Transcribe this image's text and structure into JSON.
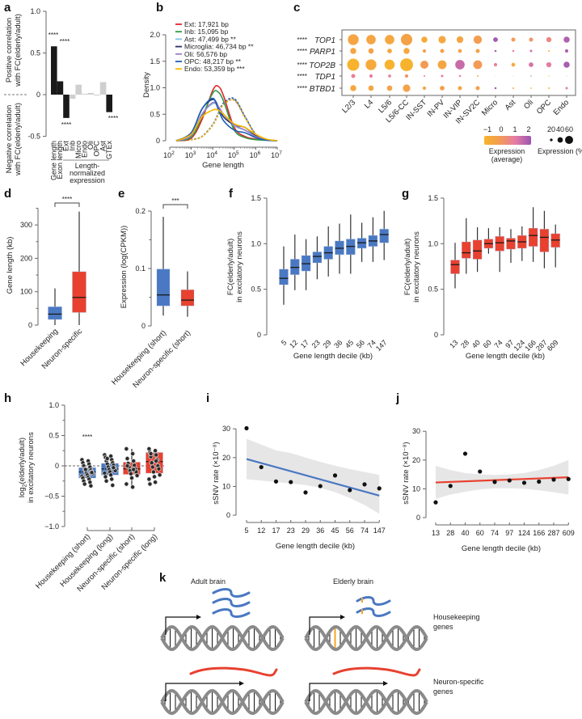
{
  "panel_labels": [
    "a",
    "b",
    "c",
    "d",
    "e",
    "f",
    "g",
    "h",
    "i",
    "j",
    "k"
  ],
  "chart_data": [
    {
      "type": "bar",
      "ylabel_positive": [
        "Positive correlation",
        "with FC(elderly/adult)"
      ],
      "ylabel_negative": [
        "Negative correlation",
        "with FC(elderly/adult)"
      ],
      "categories": [
        "Gene length",
        "Exon length",
        "Ext",
        "Inb",
        "Micro",
        "Endo",
        "Oli",
        "OPC",
        "Ast",
        "GTEx"
      ],
      "values": [
        0.58,
        0.16,
        -0.28,
        -0.05,
        0.12,
        0.01,
        0.02,
        -0.01,
        0.15,
        -0.21
      ],
      "colors": [
        "#1a1a1a",
        "#1a1a1a",
        "#1a1a1a",
        "#cfcfcf",
        "#cfcfcf",
        "#cfcfcf",
        "#cfcfcf",
        "#cfcfcf",
        "#cfcfcf",
        "#1a1a1a"
      ],
      "significance": [
        "****",
        "****",
        "****",
        "",
        "",
        "",
        "",
        "",
        "",
        "****"
      ],
      "group_label": [
        "Length-",
        "normalized",
        "expression"
      ],
      "yticks": [
        "1.0",
        "0.5",
        "0",
        "-0.5"
      ],
      "ytick_values": [
        1.0,
        0.5,
        0,
        -0.5
      ],
      "ylim": [
        -0.5,
        1.0
      ]
    },
    {
      "type": "line",
      "xlabel": "Gene length",
      "ylabel": "Density",
      "x_scale": "log",
      "x_tick_base": "10",
      "x_tick_exponents": [
        2,
        3,
        4,
        5,
        6,
        7
      ],
      "yticks": [
        "0",
        "0.5",
        "1.0",
        "1.5",
        "2.0"
      ],
      "ytick_values": [
        0,
        0.5,
        1.0,
        1.5,
        2.0
      ],
      "ylim": [
        0,
        2.0
      ],
      "x_log10": [
        2.3,
        3,
        3.5,
        4,
        4.25,
        4.5,
        5,
        5.5,
        6,
        6.5,
        7
      ],
      "reference_dashed_y": [
        0,
        0.02,
        0.08,
        0.3,
        0.5,
        0.7,
        0.78,
        0.45,
        0.12,
        0.02,
        0
      ],
      "legend_position": "top-right",
      "series": [
        {
          "name": "Ext: 17,921 bp",
          "color": "#e0262b",
          "y": [
            0,
            0.05,
            0.4,
            0.95,
            1.03,
            0.85,
            0.25,
            0.08,
            0.03,
            0.01,
            0
          ]
        },
        {
          "name": "Inb: 15,095 bp",
          "color": "#2e9a48",
          "y": [
            0,
            0.07,
            0.45,
            0.9,
            0.92,
            0.75,
            0.2,
            0.06,
            0.02,
            0.01,
            0
          ]
        },
        {
          "name": "Ast: 47,499 bp **",
          "color": "#7fc3e0",
          "y": [
            0,
            0.1,
            0.5,
            0.7,
            0.65,
            0.5,
            0.28,
            0.2,
            0.1,
            0.02,
            0
          ]
        },
        {
          "name": "Microglia: 46,734 bp **",
          "color": "#2b2f6b",
          "y": [
            0,
            0.15,
            0.6,
            0.78,
            0.65,
            0.45,
            0.3,
            0.25,
            0.1,
            0.02,
            0
          ]
        },
        {
          "name": "Oli: 56,576 bp",
          "color": "#a07cc5",
          "y": [
            0,
            0.1,
            0.5,
            0.72,
            0.65,
            0.5,
            0.3,
            0.2,
            0.08,
            0.02,
            0
          ]
        },
        {
          "name": "OPC: 48,217 bp **",
          "color": "#1f5fb5",
          "y": [
            0,
            0.15,
            0.6,
            0.8,
            0.6,
            0.38,
            0.2,
            0.15,
            0.06,
            0.01,
            0
          ]
        },
        {
          "name": "Endo: 53,359 bp ***",
          "color": "#f5b800",
          "y": [
            0,
            0.12,
            0.45,
            0.58,
            0.58,
            0.5,
            0.32,
            0.25,
            0.12,
            0.03,
            0
          ]
        }
      ]
    },
    {
      "type": "dotplot",
      "genes": [
        "TOP1",
        "PARP1",
        "TOP2B",
        "TDP1",
        "BTBD1"
      ],
      "gene_significance": [
        "****",
        "****",
        "****",
        "****",
        "****"
      ],
      "columns": [
        "L2/3",
        "L4",
        "L5/6",
        "L5/6-CC",
        "IN-SST",
        "IN-PV",
        "IN-VIP",
        "IN-SV2C",
        "Micro",
        "Ast",
        "Oli",
        "OPC",
        "Endo"
      ],
      "percent_expressed": [
        [
          80,
          70,
          70,
          85,
          45,
          55,
          50,
          62,
          35,
          30,
          30,
          38,
          45
        ],
        [
          45,
          40,
          35,
          45,
          25,
          30,
          28,
          30,
          15,
          15,
          18,
          12,
          25
        ],
        [
          90,
          80,
          75,
          95,
          60,
          65,
          70,
          65,
          25,
          28,
          35,
          38,
          45
        ],
        [
          30,
          25,
          22,
          25,
          12,
          18,
          15,
          12,
          5,
          5,
          8,
          8,
          6
        ],
        [
          45,
          40,
          40,
          55,
          25,
          35,
          30,
          30,
          15,
          12,
          10,
          12,
          18
        ]
      ],
      "average_expression": [
        [
          -0.4,
          -0.4,
          -0.5,
          -0.3,
          -0.6,
          -0.5,
          -0.4,
          -0.1,
          1.9,
          0.0,
          0.2,
          0.6,
          1.7
        ],
        [
          -0.4,
          -0.3,
          -0.5,
          -0.5,
          -0.2,
          -0.3,
          -0.3,
          -0.3,
          1.8,
          0.8,
          1.2,
          -0.9,
          1.7
        ],
        [
          -0.9,
          -0.6,
          -0.9,
          -0.9,
          0.0,
          -0.4,
          1.4,
          0.0,
          0.8,
          -0.5,
          1.2,
          0.9,
          1.8
        ],
        [
          0.8,
          1.0,
          0.8,
          0.2,
          1.0,
          1.0,
          1.0,
          -0.5,
          -0.8,
          -0.8,
          1.8,
          -0.9,
          -0.9
        ],
        [
          -0.5,
          -0.4,
          -0.3,
          -0.3,
          -0.4,
          -0.2,
          -0.4,
          -0.2,
          1.9,
          -0.5,
          -0.7,
          -0.7,
          0.8
        ]
      ],
      "color_scale": {
        "ticks": [
          "−1",
          "0",
          "1",
          "2"
        ],
        "values": [
          -1,
          0,
          1,
          2
        ],
        "colors": [
          "#f7b52a",
          "#f39a55",
          "#e57ba5",
          "#9a55b0"
        ],
        "label": [
          "Expression",
          "(average)"
        ]
      },
      "size_scale": {
        "ticks": [
          "20",
          "40",
          "60"
        ],
        "values": [
          20,
          40,
          60
        ],
        "label": "Expression (%)"
      }
    },
    {
      "type": "box",
      "ylabel": "Gene length (kb)",
      "categories": [
        "Housekeeping",
        "Neuron-specific"
      ],
      "colors": [
        "#4a78c2",
        "#e8412f"
      ],
      "boxes": [
        {
          "min": 0,
          "q1": 17,
          "median": 33,
          "q3": 55,
          "max": 110
        },
        {
          "min": 0,
          "q1": 38,
          "median": 83,
          "q3": 160,
          "max": 340
        }
      ],
      "significance": "****",
      "yticks": [
        "0",
        "100",
        "200",
        "300"
      ],
      "ytick_values": [
        0,
        100,
        200,
        300
      ],
      "ylim": [
        0,
        350
      ]
    },
    {
      "type": "box",
      "ylabel": "Expression (log(CPKM))",
      "categories": [
        "Housekeeping (short)",
        "Neuron-specific (short)"
      ],
      "colors": [
        "#4a78c2",
        "#e8412f"
      ],
      "boxes": [
        {
          "min": 0.018,
          "q1": 0.035,
          "median": 0.054,
          "q3": 0.099,
          "max": 0.19
        },
        {
          "min": 0.016,
          "q1": 0.035,
          "median": 0.045,
          "q3": 0.063,
          "max": 0.095
        }
      ],
      "significance": "***",
      "yticks": [
        "0",
        "0.1",
        "0.2"
      ],
      "ytick_values": [
        0,
        0.1,
        0.2
      ],
      "ylim": [
        0,
        0.2
      ]
    },
    {
      "type": "box",
      "ylabel": [
        "FC(elderly/adult)",
        "in excitatory neurons"
      ],
      "xlabel": "Gene length decile (kb)",
      "categories": [
        "5",
        "12",
        "17",
        "23",
        "29",
        "36",
        "45",
        "56",
        "74",
        "147"
      ],
      "color": "#4a78c2",
      "boxes": [
        {
          "min": 0.33,
          "q1": 0.55,
          "median": 0.62,
          "q3": 0.72,
          "max": 0.97
        },
        {
          "min": 0.49,
          "q1": 0.66,
          "median": 0.74,
          "q3": 0.83,
          "max": 1.1
        },
        {
          "min": 0.49,
          "q1": 0.7,
          "median": 0.78,
          "q3": 0.87,
          "max": 1.05
        },
        {
          "min": 0.61,
          "q1": 0.79,
          "median": 0.86,
          "q3": 0.91,
          "max": 1.08
        },
        {
          "min": 0.64,
          "q1": 0.83,
          "median": 0.9,
          "q3": 0.97,
          "max": 1.19
        },
        {
          "min": 0.67,
          "q1": 0.88,
          "median": 0.95,
          "q3": 1.03,
          "max": 1.22
        },
        {
          "min": 0.67,
          "q1": 0.88,
          "median": 0.97,
          "q3": 1.05,
          "max": 1.32
        },
        {
          "min": 0.8,
          "q1": 0.95,
          "median": 1.01,
          "q3": 1.06,
          "max": 1.23
        },
        {
          "min": 0.8,
          "q1": 0.97,
          "median": 1.03,
          "q3": 1.09,
          "max": 1.29
        },
        {
          "min": 0.82,
          "q1": 1.01,
          "median": 1.1,
          "q3": 1.16,
          "max": 1.36
        }
      ],
      "yticks": [
        "0",
        "0.5",
        "1.0",
        "1.5"
      ],
      "ytick_values": [
        0,
        0.5,
        1.0,
        1.5
      ],
      "ylim": [
        0,
        1.5
      ]
    },
    {
      "type": "box",
      "ylabel": [
        "FC(elderly/adult)",
        "in excitatory neurons"
      ],
      "xlabel": "Gene length decile (kb)",
      "categories": [
        "13",
        "28",
        "40",
        "60",
        "74",
        "97",
        "124",
        "166",
        "287",
        "609"
      ],
      "color": "#e8412f",
      "boxes": [
        {
          "min": 0.51,
          "q1": 0.67,
          "median": 0.77,
          "q3": 0.82,
          "max": 1.01
        },
        {
          "min": 0.67,
          "q1": 0.84,
          "median": 0.9,
          "q3": 1.02,
          "max": 1.28
        },
        {
          "min": 0.69,
          "q1": 0.83,
          "median": 0.92,
          "q3": 1.04,
          "max": 1.18
        },
        {
          "min": 0.89,
          "q1": 0.95,
          "median": 1.0,
          "q3": 1.05,
          "max": 1.17
        },
        {
          "min": 0.69,
          "q1": 0.92,
          "median": 1.01,
          "q3": 1.08,
          "max": 1.18
        },
        {
          "min": 0.79,
          "q1": 0.94,
          "median": 1.03,
          "q3": 1.06,
          "max": 1.16
        },
        {
          "min": 0.81,
          "q1": 0.95,
          "median": 1.02,
          "q3": 1.09,
          "max": 1.19
        },
        {
          "min": 0.8,
          "q1": 0.97,
          "median": 1.09,
          "q3": 1.17,
          "max": 1.4
        },
        {
          "min": 0.73,
          "q1": 0.91,
          "median": 1.07,
          "q3": 1.16,
          "max": 1.36
        },
        {
          "min": 0.74,
          "q1": 0.96,
          "median": 1.04,
          "q3": 1.11,
          "max": 1.21
        }
      ],
      "yticks": [
        "0",
        "0.5",
        "1.0",
        "1.5"
      ],
      "ytick_values": [
        0,
        0.5,
        1.0,
        1.5
      ],
      "ylim": [
        0,
        1.5
      ]
    },
    {
      "type": "box",
      "ylabel_parts": [
        "log",
        "2",
        "(elderly/adult)"
      ],
      "ylabel_line2": "in excitatory neurons",
      "categories": [
        "Housekeeping (short)",
        "Housekeeping (long)",
        "Neuron-specific (short)",
        "Neuron-specific (long)"
      ],
      "colors": [
        "#4a78c2",
        "#4a78c2",
        "#e8412f",
        "#e8412f"
      ],
      "boxes": [
        {
          "q1": -0.2,
          "median": -0.1,
          "q3": -0.03
        },
        {
          "q1": -0.15,
          "median": -0.05,
          "q3": 0.04
        },
        {
          "min": -0.35,
          "q1": -0.14,
          "median": -0.05,
          "q3": 0.06,
          "max": 0.28
        },
        {
          "q1": -0.12,
          "median": 0.07,
          "q3": 0.22
        }
      ],
      "points": [
        [
          0.1,
          0.08,
          0.05,
          0.03,
          0,
          -0.02,
          -0.05,
          -0.07,
          -0.09,
          -0.1,
          -0.12,
          -0.13,
          -0.15,
          -0.17,
          -0.19,
          -0.2,
          -0.22,
          -0.25,
          -0.27,
          -0.3,
          -0.33,
          -0.06,
          -0.11
        ],
        [
          0.18,
          0.16,
          0.14,
          0.1,
          0.08,
          0.05,
          0.03,
          0.01,
          -0.02,
          -0.04,
          -0.06,
          -0.08,
          -0.1,
          -0.12,
          -0.15,
          -0.18,
          -0.22,
          -0.25,
          -0.32,
          0.12,
          -0.03
        ],
        [
          0.28,
          0.2,
          0.12,
          0.08,
          0.04,
          0.01,
          -0.02,
          -0.05,
          -0.08,
          -0.1,
          -0.13,
          -0.16,
          -0.2,
          -0.3,
          -0.35,
          0.0,
          -0.06
        ],
        [
          0.28,
          0.25,
          0.22,
          0.18,
          0.15,
          0.1,
          0.05,
          0.0,
          -0.02,
          -0.05,
          -0.1,
          -0.15,
          -0.18,
          -0.22,
          -0.27,
          -0.3,
          0.08,
          0.2
        ]
      ],
      "significance": [
        "****",
        "",
        "",
        ""
      ],
      "yticks": [
        "1.0",
        "0.5",
        "0",
        "−0.5",
        "−1.0"
      ],
      "ytick_values": [
        1.0,
        0.5,
        0,
        -0.5,
        -1.0
      ],
      "ylim": [
        -1.0,
        1.0
      ]
    },
    {
      "type": "scatter",
      "ylabel": "sSNV rate (×10⁻⁸)",
      "xlabel": "Gene length decile (kb)",
      "categories": [
        "5",
        "12",
        "17",
        "23",
        "29",
        "36",
        "45",
        "56",
        "74",
        "147"
      ],
      "values": [
        30.2,
        16.7,
        11.7,
        11.5,
        7.9,
        10.1,
        13.8,
        8.7,
        10.7,
        9.3
      ],
      "fit": [
        19.5,
        6.8
      ],
      "fit_color": "#4a78c2",
      "ci_upper": [
        26.5,
        24.5,
        22.5,
        21.6,
        20,
        18.5,
        17.2,
        16,
        15,
        14
      ],
      "ci_lower": [
        12.5,
        12,
        11.5,
        11,
        10.5,
        9.5,
        8,
        6,
        3.5,
        0.5
      ],
      "yticks": [
        "0",
        "10",
        "20",
        "30"
      ],
      "ytick_values": [
        0,
        10,
        20,
        30
      ],
      "ylim": [
        0,
        30
      ]
    },
    {
      "type": "scatter",
      "ylabel": "sSNV rate (×10⁻⁸)",
      "xlabel": "Gene length decile (kb)",
      "categories": [
        "13",
        "28",
        "40",
        "60",
        "74",
        "97",
        "124",
        "166",
        "287",
        "609"
      ],
      "values": [
        5.3,
        11,
        22.2,
        16,
        12.4,
        12.9,
        12.1,
        12.5,
        13.2,
        13.4
      ],
      "fit": [
        12.2,
        14.0
      ],
      "fit_color": "#e8412f",
      "ci_upper": [
        18,
        16.5,
        15.5,
        15,
        14.8,
        15,
        15.5,
        16.5,
        18,
        20
      ],
      "ci_lower": [
        6.5,
        8,
        9,
        9.8,
        10.2,
        10.2,
        10,
        9.5,
        8.8,
        8
      ],
      "yticks": [
        "0",
        "10",
        "20",
        "30"
      ],
      "ytick_values": [
        0,
        10,
        20,
        30
      ],
      "ylim": [
        0,
        30
      ]
    }
  ],
  "panel_k": {
    "column_titles": [
      "Adult brain",
      "Elderly brain"
    ],
    "row_labels": [
      [
        "Housekeeping",
        "genes"
      ],
      [
        "Neuron-specific",
        "genes"
      ]
    ],
    "colors": {
      "dna": "#8a8a8a",
      "housekeeping_mrna": "#4a78c2",
      "neuron_mrna": "#e8412f",
      "mutation": "#f5a623"
    }
  }
}
